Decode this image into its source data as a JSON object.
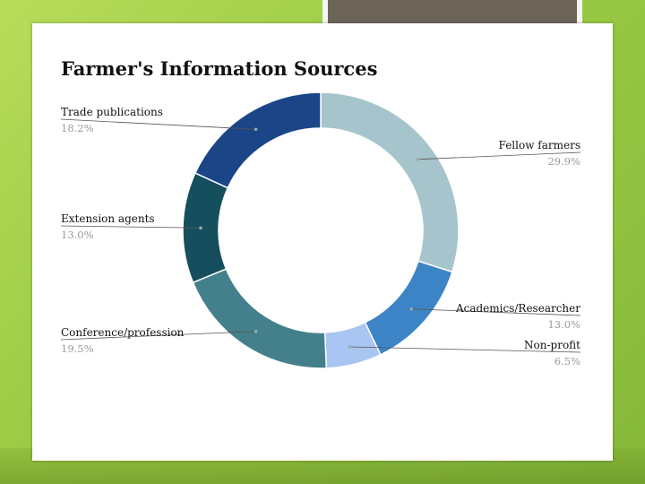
{
  "chart_data": {
    "type": "pie",
    "style": "donut",
    "title": "Farmer's Information Sources",
    "categories": [
      "Fellow farmers",
      "Academics/Researcher",
      "Non-profit",
      "Conference/profession",
      "Extension agents",
      "Trade publications"
    ],
    "values": [
      29.9,
      13.0,
      6.5,
      19.5,
      13.0,
      18.2
    ],
    "value_labels": [
      "29.9%",
      "13.0%",
      "6.5%",
      "19.5%",
      "13.0%",
      "18.2%"
    ],
    "colors": [
      "#a6c4cc",
      "#3d84c6",
      "#a9c5f2",
      "#43808c",
      "#154f5d",
      "#1c4588"
    ],
    "legend": "none"
  }
}
